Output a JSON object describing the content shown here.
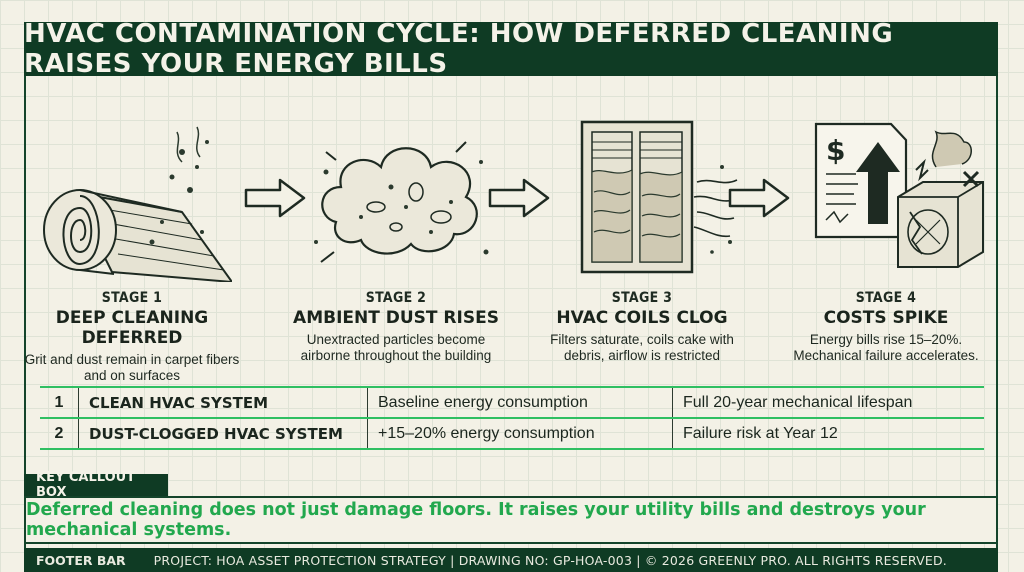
{
  "title": "HVAC CONTAMINATION CYCLE: HOW DEFERRED CLEANING RAISES YOUR ENERGY BILLS",
  "stages": [
    {
      "num": "STAGE 1",
      "name": "DEEP CLEANING DEFERRED",
      "desc": "Grit and dust remain in carpet fibers and on surfaces",
      "icon": "carpet-roll-icon"
    },
    {
      "num": "STAGE 2",
      "name": "AMBIENT DUST RISES",
      "desc": "Unextracted particles become airborne throughout the building",
      "icon": "dust-cloud-icon"
    },
    {
      "num": "STAGE 3",
      "name": "HVAC COILS CLOG",
      "desc": "Filters saturate, coils cake with debris, airflow is restricted",
      "icon": "clogged-vent-icon"
    },
    {
      "num": "STAGE 4",
      "name": "COSTS SPIKE",
      "desc": "Energy bills rise 15–20%. Mechanical failure accelerates.",
      "icon": "bill-and-broken-ac-icon"
    }
  ],
  "comparison": [
    {
      "idx": "1",
      "system": "CLEAN HVAC SYSTEM",
      "energy": "Baseline energy consumption",
      "lifespan": "Full 20-year mechanical lifespan"
    },
    {
      "idx": "2",
      "system": "DUST-CLOGGED HVAC SYSTEM",
      "energy": "+15–20% energy consumption",
      "lifespan": "Failure risk at Year 12"
    }
  ],
  "callout": {
    "label": "KEY CALLOUT BOX",
    "text": "Deferred cleaning does not just damage floors. It raises your utility bills and destroys your mechanical systems."
  },
  "footer": {
    "label": "FOOTER BAR",
    "text": "PROJECT: HOA ASSET PROTECTION STRATEGY | DRAWING NO: GP-HOA-003 | © 2026 GREENLY PRO. ALL RIGHTS RESERVED."
  },
  "colors": {
    "dark_green": "#0f3b24",
    "accent_green": "#22a84e",
    "table_line": "#2fbf62",
    "paper": "#f3f1e6"
  }
}
